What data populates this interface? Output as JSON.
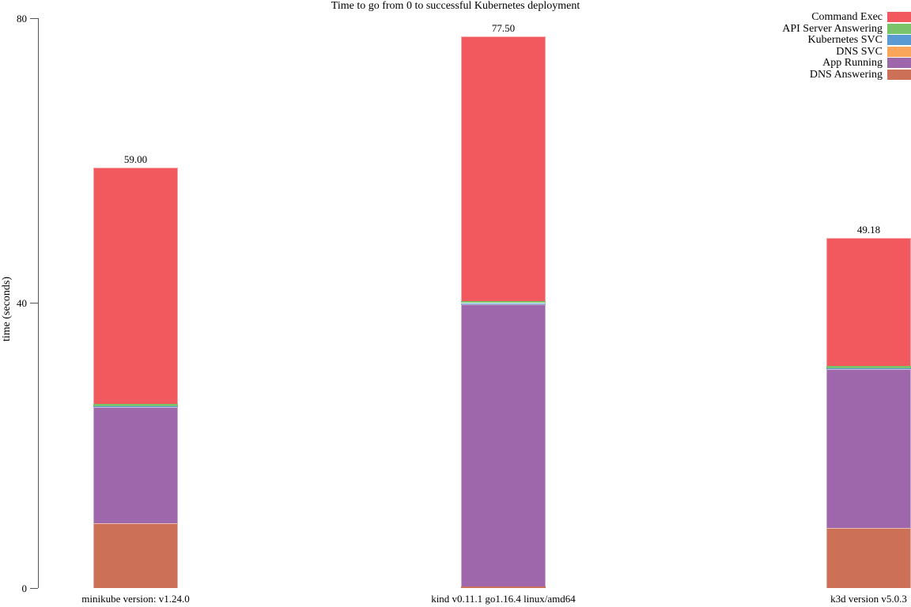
{
  "chart_data": {
    "type": "bar",
    "stacked": true,
    "title": "Time to go from 0 to successful Kubernetes deployment",
    "xlabel": "",
    "ylabel": "time (seconds)",
    "ylim": [
      0,
      80
    ],
    "yticks": [
      0,
      40,
      80
    ],
    "grid": false,
    "legend_position": "top-right",
    "categories": [
      "minikube version: v1.24.0",
      "kind v0.11.1 go1.16.4 linux/amd64",
      "k3d version v5.0.3"
    ],
    "bar_total_labels": [
      "59.00",
      "77.50",
      "49.18"
    ],
    "series": [
      {
        "name": "Command Exec",
        "color": "#F1595F",
        "values": [
          33.15,
          37.2,
          18.0
        ]
      },
      {
        "name": "API Server Answering",
        "color": "#79C36A",
        "values": [
          0.28,
          0.3,
          0.3
        ]
      },
      {
        "name": "Kubernetes SVC",
        "color": "#599AD3",
        "values": [
          0.05,
          0.05,
          0.05
        ]
      },
      {
        "name": "DNS SVC",
        "color": "#F9A65A",
        "values": [
          0.12,
          0.1,
          0.1
        ]
      },
      {
        "name": "App Running",
        "color": "#9E67AB",
        "values": [
          16.3,
          39.6,
          22.3
        ]
      },
      {
        "name": "DNS Answering",
        "color": "#CD7058",
        "values": [
          9.1,
          0.25,
          8.43
        ]
      }
    ],
    "stack_order_note": "legend order is top-of-stack to bottom-of-stack"
  }
}
